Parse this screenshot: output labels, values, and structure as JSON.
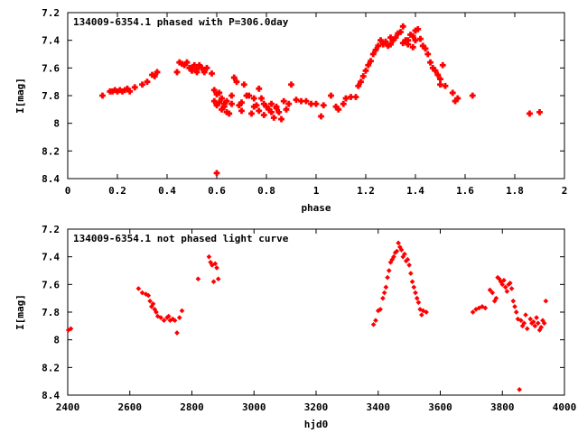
{
  "marker_color": "#ff0000",
  "axis_color": "#000000",
  "background": "#ffffff",
  "chart_data": [
    {
      "type": "scatter",
      "title": "134009-6354.1 phased with P=306.0day",
      "xlabel": "phase",
      "ylabel": "I[mag]",
      "xlim": [
        0,
        2
      ],
      "ylim": [
        8.4,
        7.2
      ],
      "y_inverted": true,
      "xticks": [
        "0",
        "0.2",
        "0.4",
        "0.6",
        "0.8",
        "1",
        "1.2",
        "1.4",
        "1.6",
        "1.8",
        "2"
      ],
      "yticks": [
        "7.2",
        "7.4",
        "7.6",
        "7.8",
        "8",
        "8.2",
        "8.4"
      ],
      "grid": false,
      "marker": "filled-square-large",
      "series": [
        {
          "x": [
            0.14,
            0.17,
            0.18,
            0.19,
            0.2,
            0.21,
            0.22,
            0.23,
            0.24,
            0.25,
            0.27,
            0.3,
            0.32,
            0.34,
            0.35,
            0.36,
            0.44,
            0.45,
            0.46,
            0.47,
            0.48,
            0.49,
            0.5,
            0.5,
            0.51,
            0.52,
            0.52,
            0.53,
            0.54,
            0.55,
            0.56,
            0.58,
            0.59,
            0.59,
            0.6,
            0.6,
            0.61,
            0.61,
            0.62,
            0.62,
            0.63,
            0.63,
            0.64,
            0.64,
            0.65,
            0.66,
            0.66,
            0.67,
            0.68,
            0.69,
            0.7,
            0.7,
            0.71,
            0.72,
            0.73,
            0.74,
            0.75,
            0.75,
            0.76,
            0.77,
            0.77,
            0.78,
            0.79,
            0.79,
            0.8,
            0.81,
            0.82,
            0.82,
            0.83,
            0.84,
            0.84,
            0.85,
            0.86,
            0.87,
            0.88,
            0.89,
            0.9,
            0.92,
            0.94,
            0.96,
            0.98,
            1.0,
            1.02,
            1.03,
            1.06,
            1.08,
            1.09,
            1.11,
            1.12,
            1.14,
            1.16,
            1.17,
            1.18,
            1.19,
            1.2,
            1.21,
            1.22,
            1.23,
            1.24,
            1.25,
            1.26,
            1.27,
            1.28,
            1.29,
            1.3,
            1.3,
            1.31,
            1.32,
            1.33,
            1.34,
            1.35,
            1.35,
            1.36,
            1.37,
            1.37,
            1.38,
            1.39,
            1.39,
            1.4,
            1.4,
            1.41,
            1.42,
            1.43,
            1.44,
            1.45,
            1.46,
            1.47,
            1.48,
            1.49,
            1.5,
            1.5,
            1.51,
            1.52,
            1.55,
            1.56,
            1.57,
            1.63,
            0.6,
            1.86,
            1.9
          ],
          "y": [
            7.8,
            7.77,
            7.77,
            7.76,
            7.77,
            7.76,
            7.77,
            7.76,
            7.75,
            7.77,
            7.74,
            7.72,
            7.7,
            7.65,
            7.66,
            7.63,
            7.63,
            7.56,
            7.57,
            7.58,
            7.56,
            7.6,
            7.62,
            7.6,
            7.58,
            7.63,
            7.61,
            7.58,
            7.6,
            7.63,
            7.6,
            7.64,
            7.76,
            7.84,
            7.79,
            7.87,
            7.85,
            7.78,
            7.9,
            7.82,
            7.86,
            7.88,
            7.92,
            7.84,
            7.93,
            7.8,
            7.86,
            7.67,
            7.7,
            7.87,
            7.91,
            7.85,
            7.72,
            7.8,
            7.8,
            7.93,
            7.82,
            7.88,
            7.87,
            7.75,
            7.91,
            7.82,
            7.94,
            7.86,
            7.88,
            7.9,
            7.86,
            7.92,
            7.96,
            7.89,
            7.88,
            7.92,
            7.97,
            7.84,
            7.9,
            7.86,
            7.72,
            7.83,
            7.84,
            7.84,
            7.86,
            7.86,
            7.95,
            7.87,
            7.8,
            7.88,
            7.9,
            7.86,
            7.82,
            7.81,
            7.81,
            7.73,
            7.7,
            7.66,
            7.62,
            7.58,
            7.55,
            7.5,
            7.47,
            7.44,
            7.4,
            7.43,
            7.41,
            7.44,
            7.38,
            7.43,
            7.4,
            7.38,
            7.35,
            7.34,
            7.3,
            7.42,
            7.4,
            7.4,
            7.43,
            7.36,
            7.37,
            7.45,
            7.33,
            7.4,
            7.32,
            7.39,
            7.44,
            7.46,
            7.5,
            7.56,
            7.6,
            7.62,
            7.65,
            7.68,
            7.72,
            7.58,
            7.73,
            7.78,
            7.84,
            7.82,
            7.8,
            8.36,
            7.93,
            7.92
          ]
        }
      ]
    },
    {
      "type": "scatter",
      "title": "134009-6354.1 not phased light curve",
      "xlabel": "hjd0",
      "ylabel": "I[mag]",
      "xlim": [
        2400,
        4000
      ],
      "ylim": [
        8.4,
        7.2
      ],
      "y_inverted": true,
      "xticks": [
        "2400",
        "2600",
        "2800",
        "3000",
        "3200",
        "3400",
        "3600",
        "3800",
        "4000"
      ],
      "yticks": [
        "7.2",
        "7.4",
        "7.6",
        "7.8",
        "8",
        "8.2",
        "8.4"
      ],
      "grid": false,
      "marker": "filled-diamond-small",
      "series": [
        {
          "x": [
            2402,
            2410,
            2628,
            2640,
            2652,
            2660,
            2665,
            2670,
            2675,
            2680,
            2685,
            2690,
            2700,
            2710,
            2720,
            2725,
            2730,
            2738,
            2745,
            2752,
            2760,
            2768,
            2820,
            2855,
            2860,
            2865,
            2870,
            2875,
            2880,
            2885,
            3385,
            3392,
            3400,
            3407,
            3415,
            3420,
            3425,
            3430,
            3435,
            3440,
            3445,
            3450,
            3455,
            3460,
            3465,
            3470,
            3475,
            3480,
            3485,
            3490,
            3495,
            3500,
            3505,
            3510,
            3515,
            3520,
            3525,
            3530,
            3535,
            3540,
            3545,
            3555,
            3705,
            3715,
            3725,
            3735,
            3745,
            3760,
            3768,
            3775,
            3780,
            3785,
            3790,
            3795,
            3800,
            3805,
            3810,
            3815,
            3820,
            3825,
            3830,
            3835,
            3840,
            3845,
            3850,
            3855,
            3860,
            3865,
            3870,
            3875,
            3880,
            3890,
            3895,
            3900,
            3905,
            3910,
            3915,
            3920,
            3925,
            3930,
            3935,
            3940
          ],
          "y": [
            7.93,
            7.92,
            7.63,
            7.66,
            7.67,
            7.68,
            7.72,
            7.76,
            7.74,
            7.78,
            7.8,
            7.83,
            7.84,
            7.86,
            7.84,
            7.83,
            7.86,
            7.85,
            7.86,
            7.95,
            7.84,
            7.79,
            7.56,
            7.4,
            7.44,
            7.46,
            7.58,
            7.45,
            7.48,
            7.56,
            7.89,
            7.86,
            7.79,
            7.78,
            7.7,
            7.66,
            7.62,
            7.55,
            7.5,
            7.44,
            7.42,
            7.4,
            7.37,
            7.36,
            7.3,
            7.33,
            7.35,
            7.4,
            7.38,
            7.43,
            7.42,
            7.46,
            7.52,
            7.58,
            7.62,
            7.66,
            7.7,
            7.73,
            7.78,
            7.82,
            7.79,
            7.8,
            7.8,
            7.78,
            7.77,
            7.76,
            7.77,
            7.64,
            7.66,
            7.72,
            7.7,
            7.55,
            7.56,
            7.58,
            7.6,
            7.57,
            7.62,
            7.65,
            7.6,
            7.59,
            7.63,
            7.72,
            7.76,
            7.8,
            7.85,
            8.36,
            7.86,
            7.9,
            7.88,
            7.82,
            7.92,
            7.85,
            7.88,
            7.87,
            7.9,
            7.84,
            7.88,
            7.93,
            7.91,
            7.86,
            7.88,
            7.72
          ]
        }
      ]
    }
  ]
}
